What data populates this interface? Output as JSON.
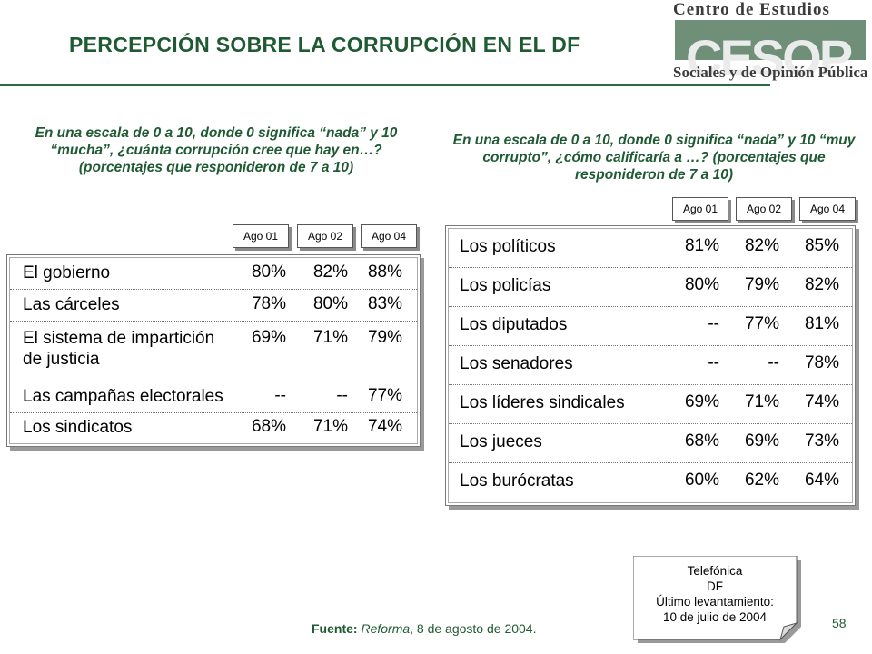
{
  "header": {
    "title": "PERCEPCIÓN SOBRE LA CORRUPCIÓN EN EL DF"
  },
  "logo": {
    "line1": "Centro de Estudios",
    "word": "CESOP",
    "line2": "Sociales y de Opinión Pública"
  },
  "left_table": {
    "question": "En una escala de 0 a 10, donde 0 significa “nada” y 10 “mucha”, ¿cuánta corrupción cree que hay en…? (porcentajes que responideron de 7 a 10)",
    "columns": [
      "Ago 01",
      "Ago 02",
      "Ago 04"
    ],
    "rows": [
      {
        "label": "El gobierno",
        "values": [
          "80%",
          "82%",
          "88%"
        ]
      },
      {
        "label": "Las cárceles",
        "values": [
          "78%",
          "80%",
          "83%"
        ]
      },
      {
        "label": "El sistema de impartición de justicia",
        "values": [
          "69%",
          "71%",
          "79%"
        ]
      },
      {
        "label": "Las campañas electorales",
        "values": [
          "--",
          "--",
          "77%"
        ]
      },
      {
        "label": "Los sindicatos",
        "values": [
          "68%",
          "71%",
          "74%"
        ]
      }
    ]
  },
  "right_table": {
    "question": "En una escala de 0 a 10, donde 0 significa “nada” y 10 “muy corrupto”, ¿cómo calificaría a …? (porcentajes que responideron de 7 a 10)",
    "columns": [
      "Ago 01",
      "Ago 02",
      "Ago 04"
    ],
    "rows": [
      {
        "label": "Los políticos",
        "values": [
          "81%",
          "82%",
          "85%"
        ]
      },
      {
        "label": "Los policías",
        "values": [
          "80%",
          "79%",
          "82%"
        ]
      },
      {
        "label": "Los diputados",
        "values": [
          "--",
          "77%",
          "81%"
        ]
      },
      {
        "label": "Los senadores",
        "values": [
          "--",
          "--",
          "78%"
        ]
      },
      {
        "label": "Los líderes sindicales",
        "values": [
          "69%",
          "71%",
          "74%"
        ]
      },
      {
        "label": "Los jueces",
        "values": [
          "68%",
          "69%",
          "73%"
        ]
      },
      {
        "label": "Los burócratas",
        "values": [
          "60%",
          "62%",
          "64%"
        ]
      }
    ]
  },
  "footer": {
    "source_label": "Fuente:",
    "source_publication": "Reforma",
    "source_date": ", 8 de agosto de 2004.",
    "page_number": "58"
  },
  "note": {
    "line1": "Telefónica",
    "line2": "DF",
    "line3": "Último levantamiento:",
    "line4": "10 de julio de 2004"
  },
  "colors": {
    "accent_green": "#1f5a33",
    "logo_band": "#6f8f78"
  }
}
